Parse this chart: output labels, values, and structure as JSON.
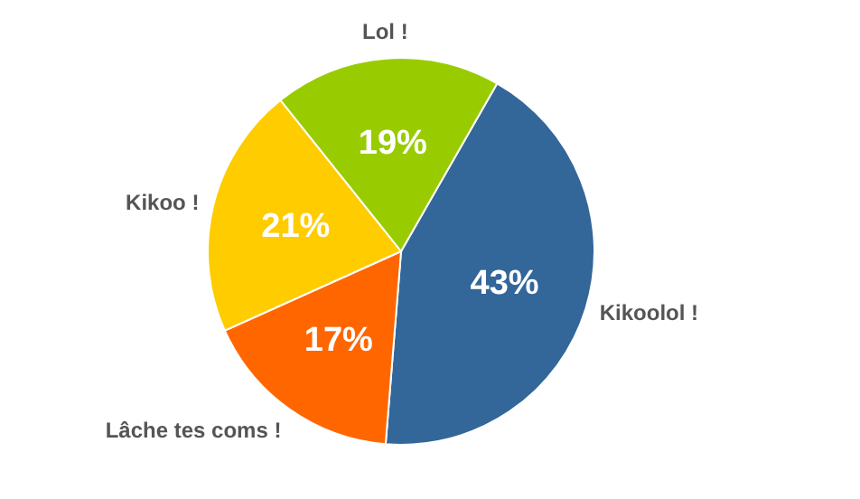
{
  "chart_data": {
    "type": "pie",
    "categories": [
      "Kikoolol !",
      "Lâche tes coms !",
      "Kikoo !",
      "Lol !"
    ],
    "values": [
      43,
      17,
      21,
      19
    ],
    "colors": [
      "#336699",
      "#ff6600",
      "#ffcc00",
      "#99cc00"
    ],
    "value_labels": [
      "43%",
      "17%",
      "21%",
      "19%"
    ]
  }
}
